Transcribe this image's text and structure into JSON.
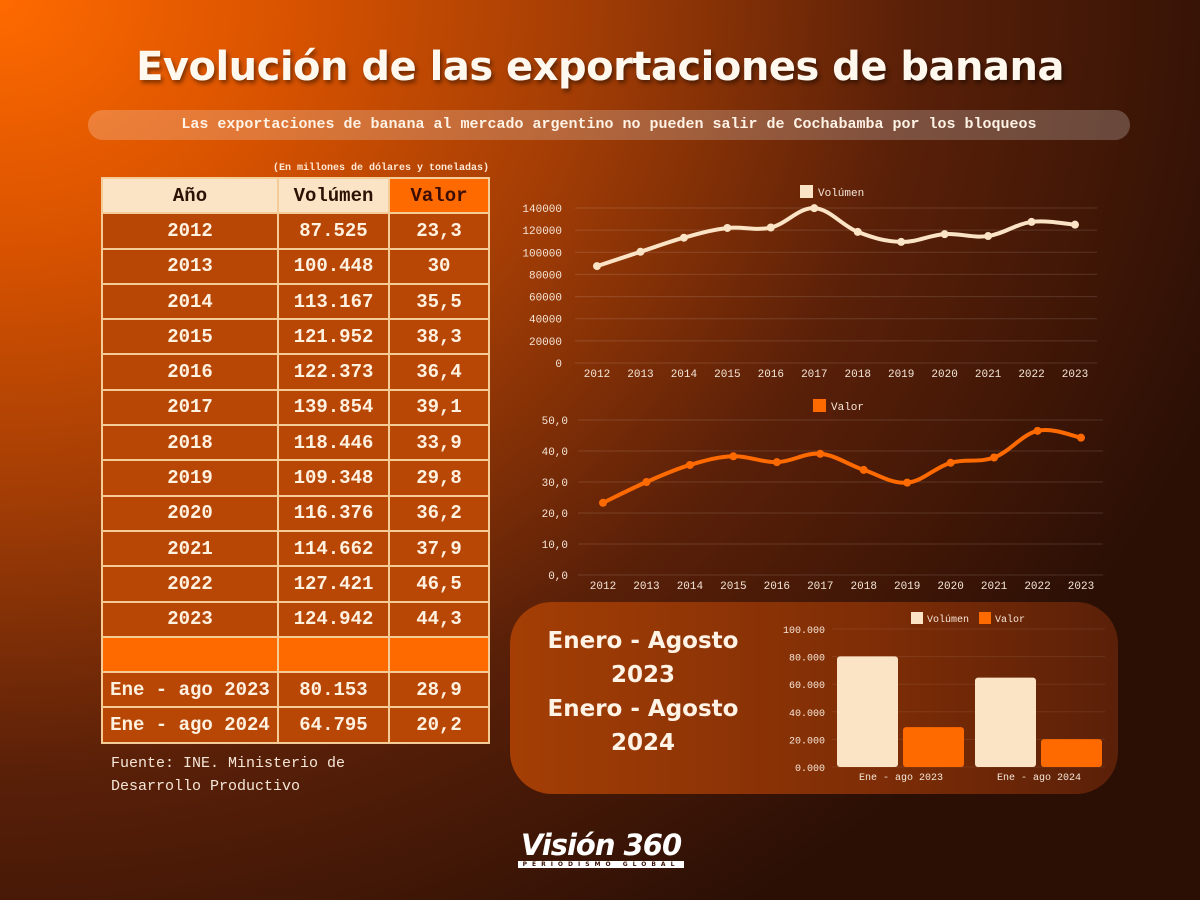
{
  "title": "Evolución de las exportaciones de banana",
  "subtitle": "Las exportaciones de banana al mercado argentino no pueden salir de Cochabamba por los bloqueos",
  "table": {
    "caption": "(En millones de dólares y toneladas)",
    "headers": [
      "Año",
      "Volúmen",
      "Valor"
    ],
    "rows": [
      [
        "2012",
        "87.525",
        "23,3"
      ],
      [
        "2013",
        "100.448",
        "30"
      ],
      [
        "2014",
        "113.167",
        "35,5"
      ],
      [
        "2015",
        "121.952",
        "38,3"
      ],
      [
        "2016",
        "122.373",
        "36,4"
      ],
      [
        "2017",
        "139.854",
        "39,1"
      ],
      [
        "2018",
        "118.446",
        "33,9"
      ],
      [
        "2019",
        "109.348",
        "29,8"
      ],
      [
        "2020",
        "116.376",
        "36,2"
      ],
      [
        "2021",
        "114.662",
        "37,9"
      ],
      [
        "2022",
        "127.421",
        "46,5"
      ],
      [
        "2023",
        "124.942",
        "44,3"
      ]
    ],
    "partial_rows": [
      [
        "Ene - ago 2023",
        "80.153",
        "28,9"
      ],
      [
        "Ene - ago 2024",
        "64.795",
        "20,2"
      ]
    ]
  },
  "source": [
    "Fuente: INE. Ministerio de",
    "Desarrollo Productivo"
  ],
  "panel_text": [
    "Enero - Agosto",
    "2023",
    "Enero - Agosto",
    "2024"
  ],
  "logo": {
    "name": "Visión 360",
    "tagline": "PERIODISMO GLOBAL"
  },
  "colors": {
    "volumen": "#fbe3c5",
    "valor": "#ff6a00"
  },
  "chart_data": [
    {
      "type": "line",
      "legend": [
        "Volúmen"
      ],
      "legend_position": "top-center",
      "x": [
        "2012",
        "2013",
        "2014",
        "2015",
        "2016",
        "2017",
        "2018",
        "2019",
        "2020",
        "2021",
        "2022",
        "2023"
      ],
      "values": [
        87525,
        100448,
        113167,
        121952,
        122373,
        139854,
        118446,
        109348,
        116376,
        114662,
        127421,
        124942
      ],
      "ylim": [
        0,
        140000
      ],
      "yticks": [
        "0",
        "20000",
        "40000",
        "60000",
        "80000",
        "100000",
        "120000",
        "140000"
      ],
      "grid": true
    },
    {
      "type": "line",
      "legend": [
        "Valor"
      ],
      "legend_position": "top-center",
      "x": [
        "2012",
        "2013",
        "2014",
        "2015",
        "2016",
        "2017",
        "2018",
        "2019",
        "2020",
        "2021",
        "2022",
        "2023"
      ],
      "values": [
        23.3,
        30,
        35.5,
        38.3,
        36.4,
        39.1,
        33.9,
        29.8,
        36.2,
        37.9,
        46.5,
        44.3
      ],
      "ylim": [
        0,
        50
      ],
      "yticks": [
        "0,0",
        "10,0",
        "20,0",
        "30,0",
        "40,0",
        "50,0"
      ],
      "grid": true
    },
    {
      "type": "bar",
      "legend": [
        "Volúmen",
        "Valor"
      ],
      "legend_position": "top",
      "categories": [
        "Ene - ago 2023",
        "Ene - ago 2024"
      ],
      "series": [
        {
          "name": "Volúmen",
          "values": [
            80153,
            64795
          ]
        },
        {
          "name": "Valor",
          "values": [
            28.9,
            20.2
          ]
        }
      ],
      "ylim": [
        0,
        100000
      ],
      "yticks": [
        "0.000",
        "20.000",
        "40.000",
        "60.000",
        "80.000",
        "100.000"
      ],
      "grid": true
    }
  ]
}
